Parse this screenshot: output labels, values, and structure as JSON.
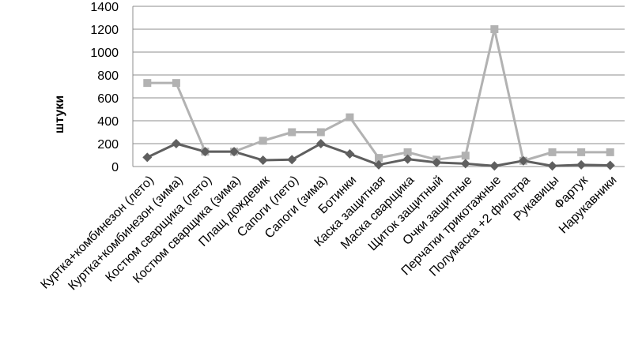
{
  "chart_data": {
    "type": "line",
    "title": "",
    "xlabel": "",
    "ylabel": "штуки",
    "ylim": [
      0,
      1400
    ],
    "yticks": [
      0,
      200,
      400,
      600,
      800,
      1000,
      1200,
      1400
    ],
    "grid": "horizontal",
    "legend": "none",
    "categories": [
      "Куртка+комбинезон (лето)",
      "Куртка+комбинезон (зима)",
      "Костюм сварщика (лето)",
      "Костюм сварщика (зима)",
      "Плащ дождевик",
      "Сапоги (лето)",
      "Сапоги (зима)",
      "Ботинки",
      "Каска защитная",
      "Маска сварщика",
      "Щиток защитный",
      "Очки защитные",
      "Перчатки трикотажные",
      "Полумаска +2 фильтра",
      "Рукавицы",
      "Фартук",
      "Нарукавники"
    ],
    "series": [
      {
        "color": "#5f5f5f",
        "marker": "diamond",
        "values": [
          80,
          200,
          130,
          130,
          55,
          60,
          200,
          110,
          15,
          65,
          35,
          25,
          5,
          50,
          5,
          15,
          10
        ]
      },
      {
        "color": "#b2b2b2",
        "marker": "square",
        "values": [
          730,
          730,
          130,
          130,
          225,
          300,
          300,
          430,
          75,
          125,
          60,
          95,
          1200,
          50,
          125,
          125,
          125
        ]
      }
    ]
  }
}
